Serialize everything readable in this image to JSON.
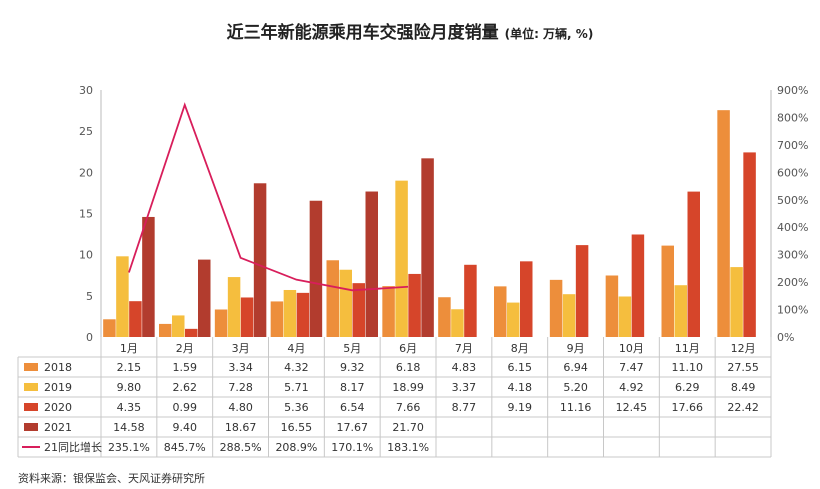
{
  "chart_data": {
    "type": "bar",
    "title": "近三年新能源乘用车交强险月度销量",
    "unit": "(单位: 万辆, %)",
    "categories": [
      "1月",
      "2月",
      "3月",
      "4月",
      "5月",
      "6月",
      "7月",
      "8月",
      "9月",
      "10月",
      "11月",
      "12月"
    ],
    "y_left": {
      "min": 0,
      "max": 30,
      "ticks": [
        "0",
        "5",
        "10",
        "15",
        "20",
        "25",
        "30"
      ]
    },
    "y_right": {
      "min": 0,
      "max": 900,
      "ticks": [
        "0%",
        "100%",
        "200%",
        "300%",
        "400%",
        "500%",
        "600%",
        "700%",
        "800%",
        "900%"
      ]
    },
    "series": [
      {
        "name": "2018",
        "kind": "bar",
        "color": "#ED8E3B",
        "values": [
          2.15,
          1.59,
          3.34,
          4.32,
          9.32,
          6.18,
          4.83,
          6.15,
          6.94,
          7.47,
          11.1,
          27.55
        ],
        "labels": [
          "2.15",
          "1.59",
          "3.34",
          "4.32",
          "9.32",
          "6.18",
          "4.83",
          "6.15",
          "6.94",
          "7.47",
          "11.10",
          "27.55"
        ]
      },
      {
        "name": "2019",
        "kind": "bar",
        "color": "#F5BE3E",
        "values": [
          9.8,
          2.62,
          7.28,
          5.71,
          8.17,
          18.99,
          3.37,
          4.18,
          5.2,
          4.92,
          6.29,
          8.49
        ],
        "labels": [
          "9.80",
          "2.62",
          "7.28",
          "5.71",
          "8.17",
          "18.99",
          "3.37",
          "4.18",
          "5.20",
          "4.92",
          "6.29",
          "8.49"
        ]
      },
      {
        "name": "2020",
        "kind": "bar",
        "color": "#D6452A",
        "values": [
          4.35,
          0.99,
          4.8,
          5.36,
          6.54,
          7.66,
          8.77,
          9.19,
          11.16,
          12.45,
          17.66,
          22.42
        ],
        "labels": [
          "4.35",
          "0.99",
          "4.80",
          "5.36",
          "6.54",
          "7.66",
          "8.77",
          "9.19",
          "11.16",
          "12.45",
          "17.66",
          "22.42"
        ]
      },
      {
        "name": "2021",
        "kind": "bar",
        "color": "#B23C2E",
        "values": [
          14.58,
          9.4,
          18.67,
          16.55,
          17.67,
          21.7,
          null,
          null,
          null,
          null,
          null,
          null
        ],
        "labels": [
          "14.58",
          "9.40",
          "18.67",
          "16.55",
          "17.67",
          "21.70",
          "",
          "",
          "",
          "",
          "",
          ""
        ]
      },
      {
        "name": "21同比增长",
        "kind": "line",
        "axis": "right",
        "color": "#D81E5B",
        "values": [
          235.1,
          845.7,
          288.5,
          208.9,
          170.1,
          183.1,
          null,
          null,
          null,
          null,
          null,
          null
        ],
        "labels": [
          "235.1%",
          "845.7%",
          "288.5%",
          "208.9%",
          "170.1%",
          "183.1%",
          "",
          "",
          "",
          "",
          "",
          ""
        ]
      }
    ]
  },
  "source": "资料来源：银保监会、天风证券研究所"
}
